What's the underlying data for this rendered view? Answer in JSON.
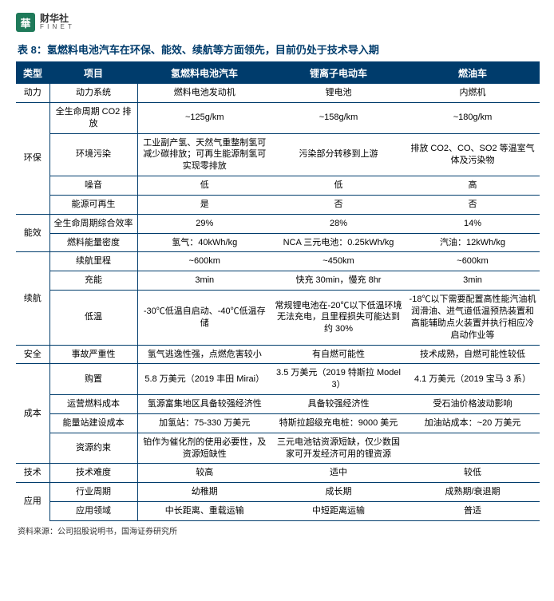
{
  "logo": {
    "badge": "華",
    "cn": "财华社",
    "en": "F I N E T"
  },
  "title": "表 8：氢燃料电池汽车在环保、能效、续航等方面领先，目前仍处于技术导入期",
  "headers": {
    "c0": "类型",
    "c1": "项目",
    "c2": "氢燃料电池汽车",
    "c3": "锂离子电动车",
    "c4": "燃油车"
  },
  "body": [
    {
      "cat": "动力",
      "rows": [
        {
          "p": "动力系统",
          "v": [
            "燃料电池发动机",
            "锂电池",
            "内燃机"
          ]
        }
      ]
    },
    {
      "cat": "环保",
      "rows": [
        {
          "p": "全生命周期 CO2 排放",
          "v": [
            "~125g/km",
            "~158g/km",
            "~180g/km"
          ]
        },
        {
          "p": "环境污染",
          "v": [
            "工业副产氢、天然气重整制氢可减少碳排放；可再生能源制氢可实现零排放",
            "污染部分转移到上游",
            "排放 CO2、CO、SO2 等温室气体及污染物"
          ]
        },
        {
          "p": "噪音",
          "v": [
            "低",
            "低",
            "高"
          ]
        },
        {
          "p": "能源可再生",
          "v": [
            "是",
            "否",
            "否"
          ]
        }
      ]
    },
    {
      "cat": "能效",
      "rows": [
        {
          "p": "全生命周期综合效率",
          "v": [
            "29%",
            "28%",
            "14%"
          ]
        },
        {
          "p": "燃料能量密度",
          "v": [
            "氢气：40kWh/kg",
            "NCA 三元电池：0.25kWh/kg",
            "汽油：12kWh/kg"
          ]
        }
      ]
    },
    {
      "cat": "续航",
      "rows": [
        {
          "p": "续航里程",
          "v": [
            "~600km",
            "~450km",
            "~600km"
          ]
        },
        {
          "p": "充能",
          "v": [
            "3min",
            "快充 30min，慢充 8hr",
            "3min"
          ]
        },
        {
          "p": "低温",
          "v": [
            "-30℃低温自启动、-40℃低温存储",
            "常规锂电池在-20℃以下低温环境无法充电，且里程损失可能达到约 30%",
            "-18℃以下需要配置高性能汽油机润滑油、进气道低温预热装置和高能辅助点火装置并执行相应冷启动作业等"
          ]
        }
      ]
    },
    {
      "cat": "安全",
      "rows": [
        {
          "p": "事故严重性",
          "v": [
            "氢气逃逸性强，点燃危害较小",
            "有自燃可能性",
            "技术成熟，自燃可能性较低"
          ]
        }
      ]
    },
    {
      "cat": "成本",
      "rows": [
        {
          "p": "购置",
          "v": [
            "5.8 万美元（2019 丰田 Mirai）",
            "3.5 万美元（2019 特斯拉 Model 3）",
            "4.1 万美元（2019 宝马 3 系）"
          ]
        },
        {
          "p": "运营燃料成本",
          "v": [
            "氢源富集地区具备较强经济性",
            "具备较强经济性",
            "受石油价格波动影响"
          ]
        },
        {
          "p": "能量站建设成本",
          "v": [
            "加氢站：75-330 万美元",
            "特斯拉超级充电桩：9000 美元",
            "加油站成本：~20 万美元"
          ]
        },
        {
          "p": "资源约束",
          "v": [
            "铂作为催化剂的使用必要性，及资源短缺性",
            "三元电池钴资源短缺，仅少数国家可开发经济可用的锂资源",
            ""
          ]
        }
      ]
    },
    {
      "cat": "技术",
      "rows": [
        {
          "p": "技术难度",
          "v": [
            "较高",
            "适中",
            "较低"
          ]
        }
      ]
    },
    {
      "cat": "应用",
      "rows": [
        {
          "p": "行业周期",
          "v": [
            "幼稚期",
            "成长期",
            "成熟期/衰退期"
          ]
        },
        {
          "p": "应用领域",
          "v": [
            "中长距离、重载运输",
            "中短距离运输",
            "普适"
          ]
        }
      ]
    }
  ],
  "source": "资料来源：公司招股说明书，国海证券研究所"
}
